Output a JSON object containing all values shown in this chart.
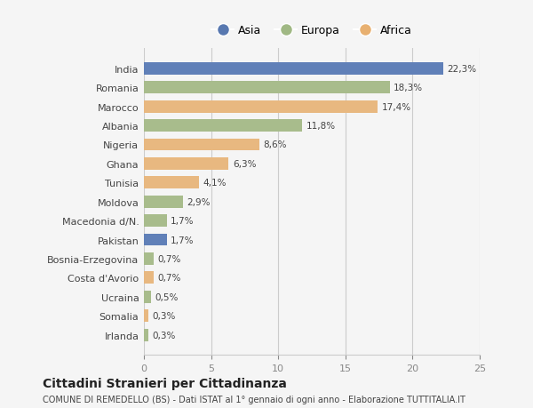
{
  "countries": [
    "India",
    "Romania",
    "Marocco",
    "Albania",
    "Nigeria",
    "Ghana",
    "Tunisia",
    "Moldova",
    "Macedonia d/N.",
    "Pakistan",
    "Bosnia-Erzegovina",
    "Costa d'Avorio",
    "Ucraina",
    "Somalia",
    "Irlanda"
  ],
  "values": [
    22.3,
    18.3,
    17.4,
    11.8,
    8.6,
    6.3,
    4.1,
    2.9,
    1.7,
    1.7,
    0.7,
    0.7,
    0.5,
    0.3,
    0.3
  ],
  "labels": [
    "22,3%",
    "18,3%",
    "17,4%",
    "11,8%",
    "8,6%",
    "6,3%",
    "4,1%",
    "2,9%",
    "1,7%",
    "1,7%",
    "0,7%",
    "0,7%",
    "0,5%",
    "0,3%",
    "0,3%"
  ],
  "continents": [
    "Asia",
    "Europa",
    "Africa",
    "Europa",
    "Africa",
    "Africa",
    "Africa",
    "Europa",
    "Europa",
    "Asia",
    "Europa",
    "Africa",
    "Europa",
    "Africa",
    "Europa"
  ],
  "colors": {
    "Asia": "#6080b8",
    "Europa": "#a8bc8c",
    "Africa": "#e8b880"
  },
  "legend_colors": {
    "Asia": "#5878b0",
    "Europa": "#a0b884",
    "Africa": "#e8b070"
  },
  "bg_color": "#f5f5f5",
  "title": "Cittadini Stranieri per Cittadinanza",
  "subtitle": "COMUNE DI REMEDELLO (BS) - Dati ISTAT al 1° gennaio di ogni anno - Elaborazione TUTTITALIA.IT",
  "xlim": [
    0,
    25
  ],
  "xticks": [
    0,
    5,
    10,
    15,
    20,
    25
  ]
}
